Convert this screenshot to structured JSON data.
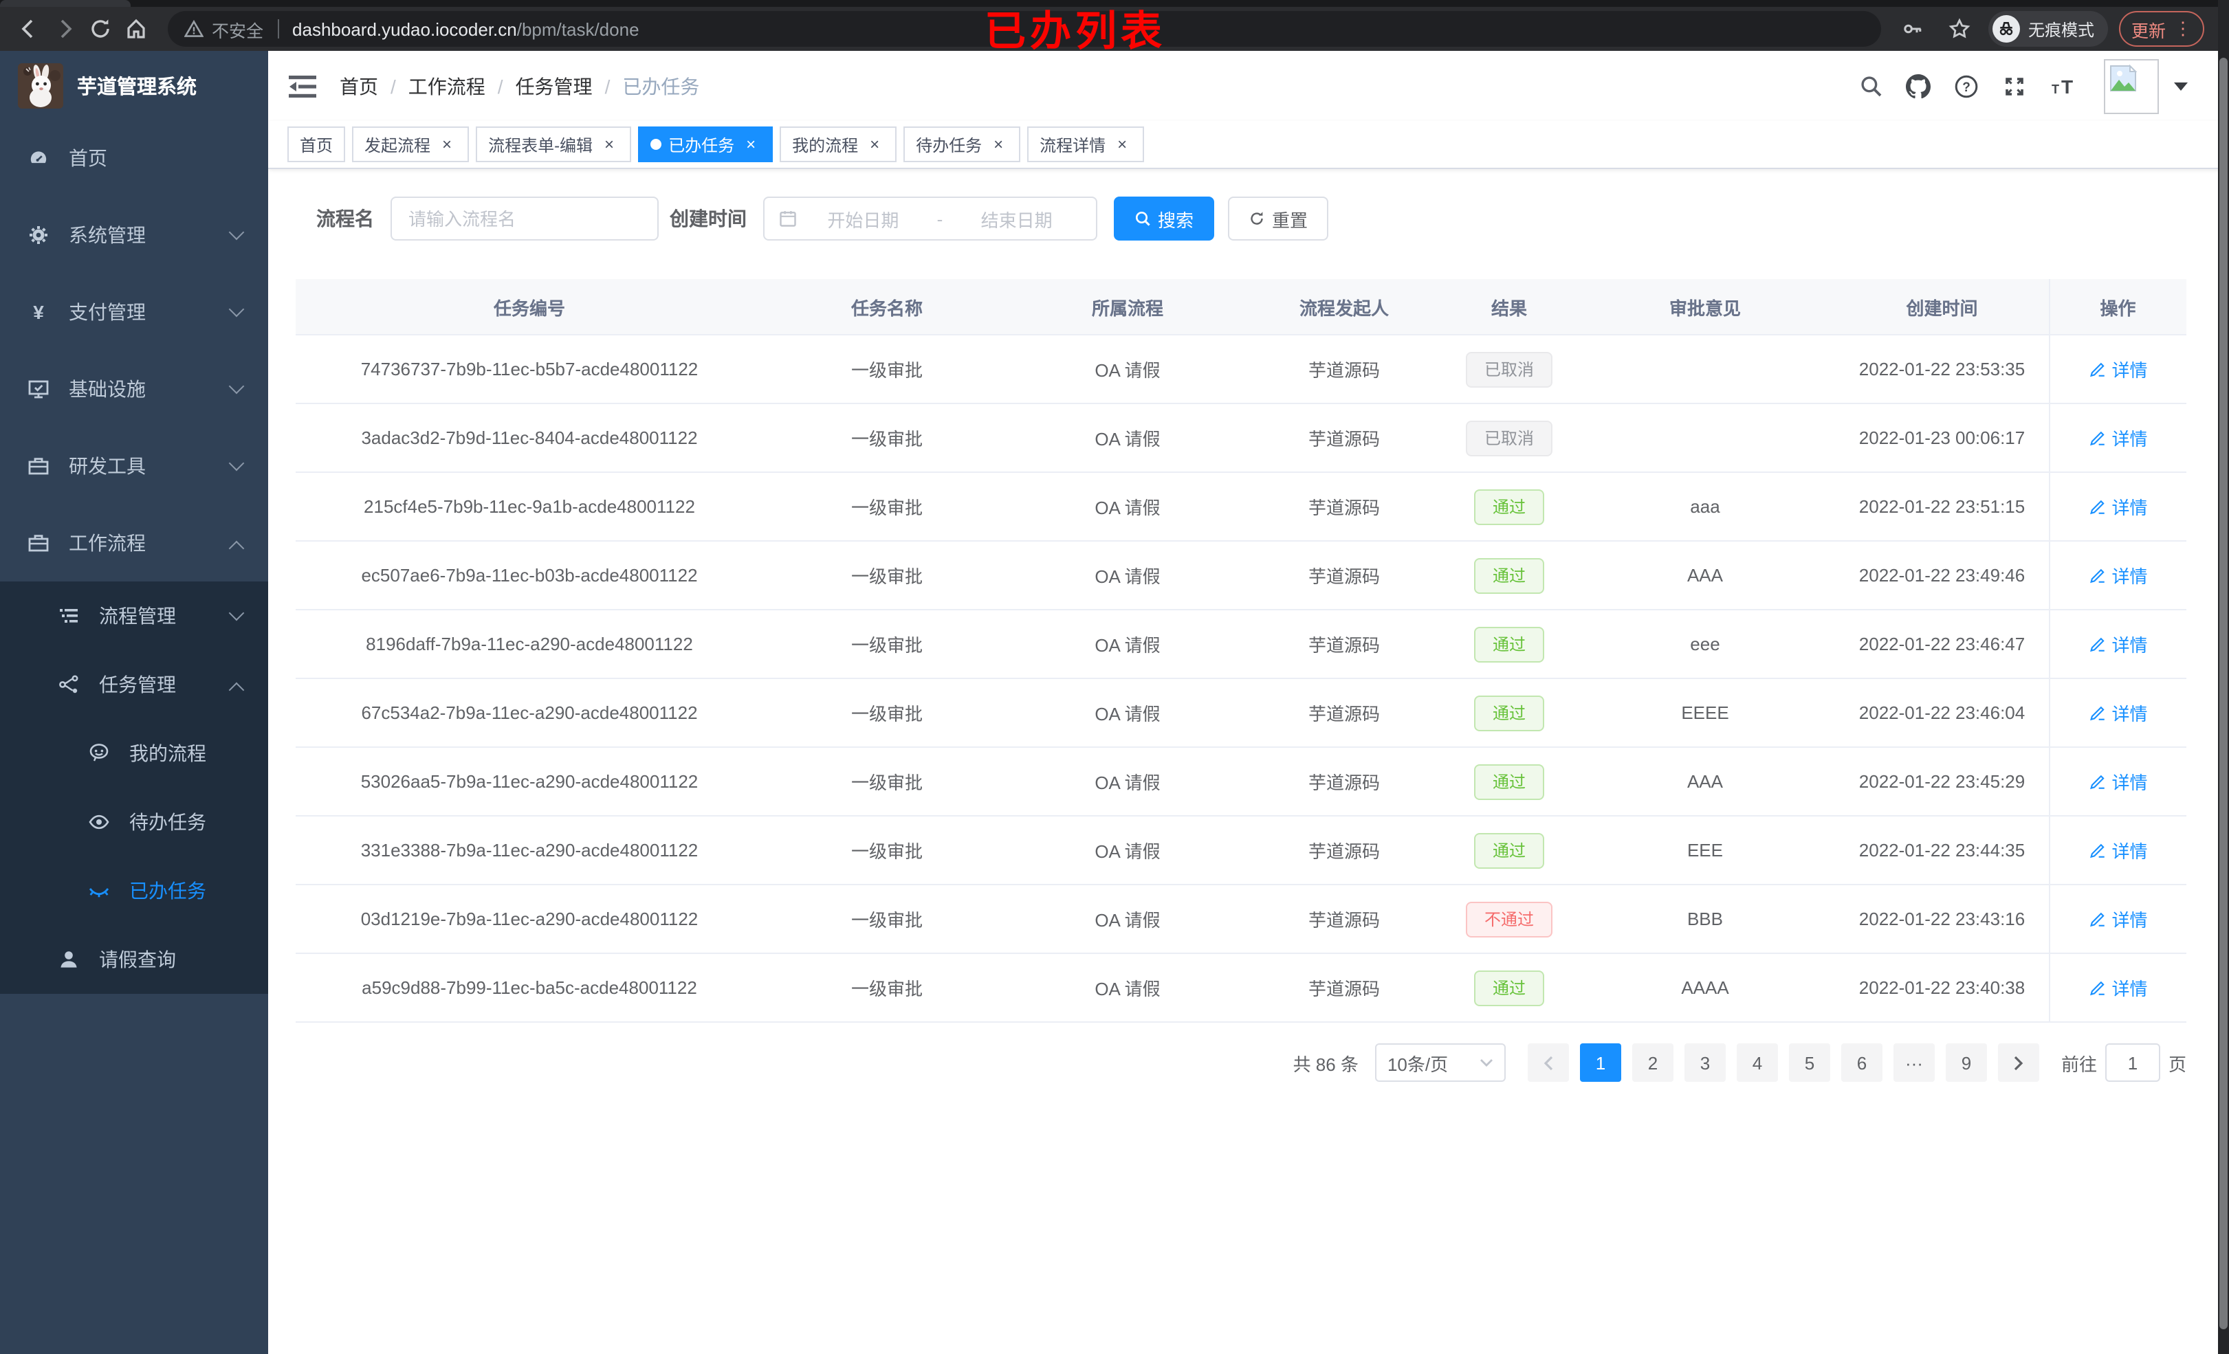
{
  "colors": {
    "accent": "#1890ff",
    "success": "#67c23a",
    "danger": "#f56c6c",
    "info": "#909399",
    "sidebar": "#304156",
    "sidebar_dark": "#1f2d3d"
  },
  "annotation": {
    "text": "已办列表",
    "color": "#fb0400"
  },
  "browser": {
    "security_label": "不安全",
    "url_host": "dashboard.yudao.iocoder.cn",
    "url_path": "/bpm/task/done",
    "incognito_label": "无痕模式",
    "update_label": "更新"
  },
  "sidebar": {
    "title": "芋道管理系统",
    "items": [
      {
        "key": "home",
        "label": "首页",
        "icon": "dashboard-icon",
        "level": 1
      },
      {
        "key": "system",
        "label": "系统管理",
        "icon": "gear-icon",
        "level": 1,
        "chevron": "down"
      },
      {
        "key": "payment",
        "label": "支付管理",
        "icon": "yen-icon",
        "level": 1,
        "chevron": "down"
      },
      {
        "key": "infrastructure",
        "label": "基础设施",
        "icon": "monitor-icon",
        "level": 1,
        "chevron": "down"
      },
      {
        "key": "dev-tools",
        "label": "研发工具",
        "icon": "toolbox-icon",
        "level": 1,
        "chevron": "down"
      },
      {
        "key": "workflow",
        "label": "工作流程",
        "icon": "toolbox-icon",
        "level": 1,
        "chevron": "up"
      },
      {
        "key": "process-mgmt",
        "label": "流程管理",
        "icon": "list-icon",
        "level": 2,
        "chevron": "down",
        "dark": true
      },
      {
        "key": "task-mgmt",
        "label": "任务管理",
        "icon": "flow-icon",
        "level": 2,
        "chevron": "up",
        "dark": true
      },
      {
        "key": "my-process",
        "label": "我的流程",
        "icon": "face-icon",
        "level": 3,
        "dark": true
      },
      {
        "key": "todo-tasks",
        "label": "待办任务",
        "icon": "eye-icon",
        "level": 3,
        "dark": true
      },
      {
        "key": "done-tasks",
        "label": "已办任务",
        "icon": "eye-closed-icon",
        "level": 3,
        "dark": true,
        "active": true
      },
      {
        "key": "leave-query",
        "label": "请假查询",
        "icon": "user-icon",
        "level": 2,
        "dark": true
      }
    ]
  },
  "header": {
    "breadcrumb": [
      "首页",
      "工作流程",
      "任务管理",
      "已办任务"
    ]
  },
  "tabs": [
    {
      "key": "home",
      "label": "首页",
      "closable": false,
      "active": false
    },
    {
      "key": "start-process",
      "label": "发起流程",
      "closable": true,
      "active": false
    },
    {
      "key": "form-edit",
      "label": "流程表单-编辑",
      "closable": true,
      "active": false
    },
    {
      "key": "done-tasks",
      "label": "已办任务",
      "closable": true,
      "active": true
    },
    {
      "key": "my-process",
      "label": "我的流程",
      "closable": true,
      "active": false
    },
    {
      "key": "todo-tasks",
      "label": "待办任务",
      "closable": true,
      "active": false
    },
    {
      "key": "process-detail",
      "label": "流程详情",
      "closable": true,
      "active": false
    }
  ],
  "filters": {
    "name_label": "流程名",
    "name_placeholder": "请输入流程名",
    "time_label": "创建时间",
    "start_placeholder": "开始日期",
    "range_separator": "-",
    "end_placeholder": "结束日期",
    "search_label": "搜索",
    "reset_label": "重置"
  },
  "table": {
    "columns": [
      "任务编号",
      "任务名称",
      "所属流程",
      "流程发起人",
      "结果",
      "审批意见",
      "创建时间",
      "操作"
    ],
    "action_label": "详情",
    "rows": [
      {
        "id": "74736737-7b9b-11ec-b5b7-acde48001122",
        "name": "一级审批",
        "flow": "OA 请假",
        "starter": "芋道源码",
        "result": "已取消",
        "result_type": "info",
        "comment": "",
        "time": "2022-01-22 23:53:35"
      },
      {
        "id": "3adac3d2-7b9d-11ec-8404-acde48001122",
        "name": "一级审批",
        "flow": "OA 请假",
        "starter": "芋道源码",
        "result": "已取消",
        "result_type": "info",
        "comment": "",
        "time": "2022-01-23 00:06:17"
      },
      {
        "id": "215cf4e5-7b9b-11ec-9a1b-acde48001122",
        "name": "一级审批",
        "flow": "OA 请假",
        "starter": "芋道源码",
        "result": "通过",
        "result_type": "success",
        "comment": "aaa",
        "time": "2022-01-22 23:51:15"
      },
      {
        "id": "ec507ae6-7b9a-11ec-b03b-acde48001122",
        "name": "一级审批",
        "flow": "OA 请假",
        "starter": "芋道源码",
        "result": "通过",
        "result_type": "success",
        "comment": "AAA",
        "time": "2022-01-22 23:49:46"
      },
      {
        "id": "8196daff-7b9a-11ec-a290-acde48001122",
        "name": "一级审批",
        "flow": "OA 请假",
        "starter": "芋道源码",
        "result": "通过",
        "result_type": "success",
        "comment": "eee",
        "time": "2022-01-22 23:46:47"
      },
      {
        "id": "67c534a2-7b9a-11ec-a290-acde48001122",
        "name": "一级审批",
        "flow": "OA 请假",
        "starter": "芋道源码",
        "result": "通过",
        "result_type": "success",
        "comment": "EEEE",
        "time": "2022-01-22 23:46:04"
      },
      {
        "id": "53026aa5-7b9a-11ec-a290-acde48001122",
        "name": "一级审批",
        "flow": "OA 请假",
        "starter": "芋道源码",
        "result": "通过",
        "result_type": "success",
        "comment": "AAA",
        "time": "2022-01-22 23:45:29"
      },
      {
        "id": "331e3388-7b9a-11ec-a290-acde48001122",
        "name": "一级审批",
        "flow": "OA 请假",
        "starter": "芋道源码",
        "result": "通过",
        "result_type": "success",
        "comment": "EEE",
        "time": "2022-01-22 23:44:35"
      },
      {
        "id": "03d1219e-7b9a-11ec-a290-acde48001122",
        "name": "一级审批",
        "flow": "OA 请假",
        "starter": "芋道源码",
        "result": "不通过",
        "result_type": "danger",
        "comment": "BBB",
        "time": "2022-01-22 23:43:16"
      },
      {
        "id": "a59c9d88-7b99-11ec-ba5c-acde48001122",
        "name": "一级审批",
        "flow": "OA 请假",
        "starter": "芋道源码",
        "result": "通过",
        "result_type": "success",
        "comment": "AAAA",
        "time": "2022-01-22 23:40:38"
      }
    ]
  },
  "pagination": {
    "total": "共 86 条",
    "page_size": "10条/页",
    "pages": [
      "1",
      "2",
      "3",
      "4",
      "5",
      "6",
      "···",
      "9"
    ],
    "active": "1",
    "jump_label": "前往",
    "jump_value": "1",
    "jump_suffix": "页"
  }
}
